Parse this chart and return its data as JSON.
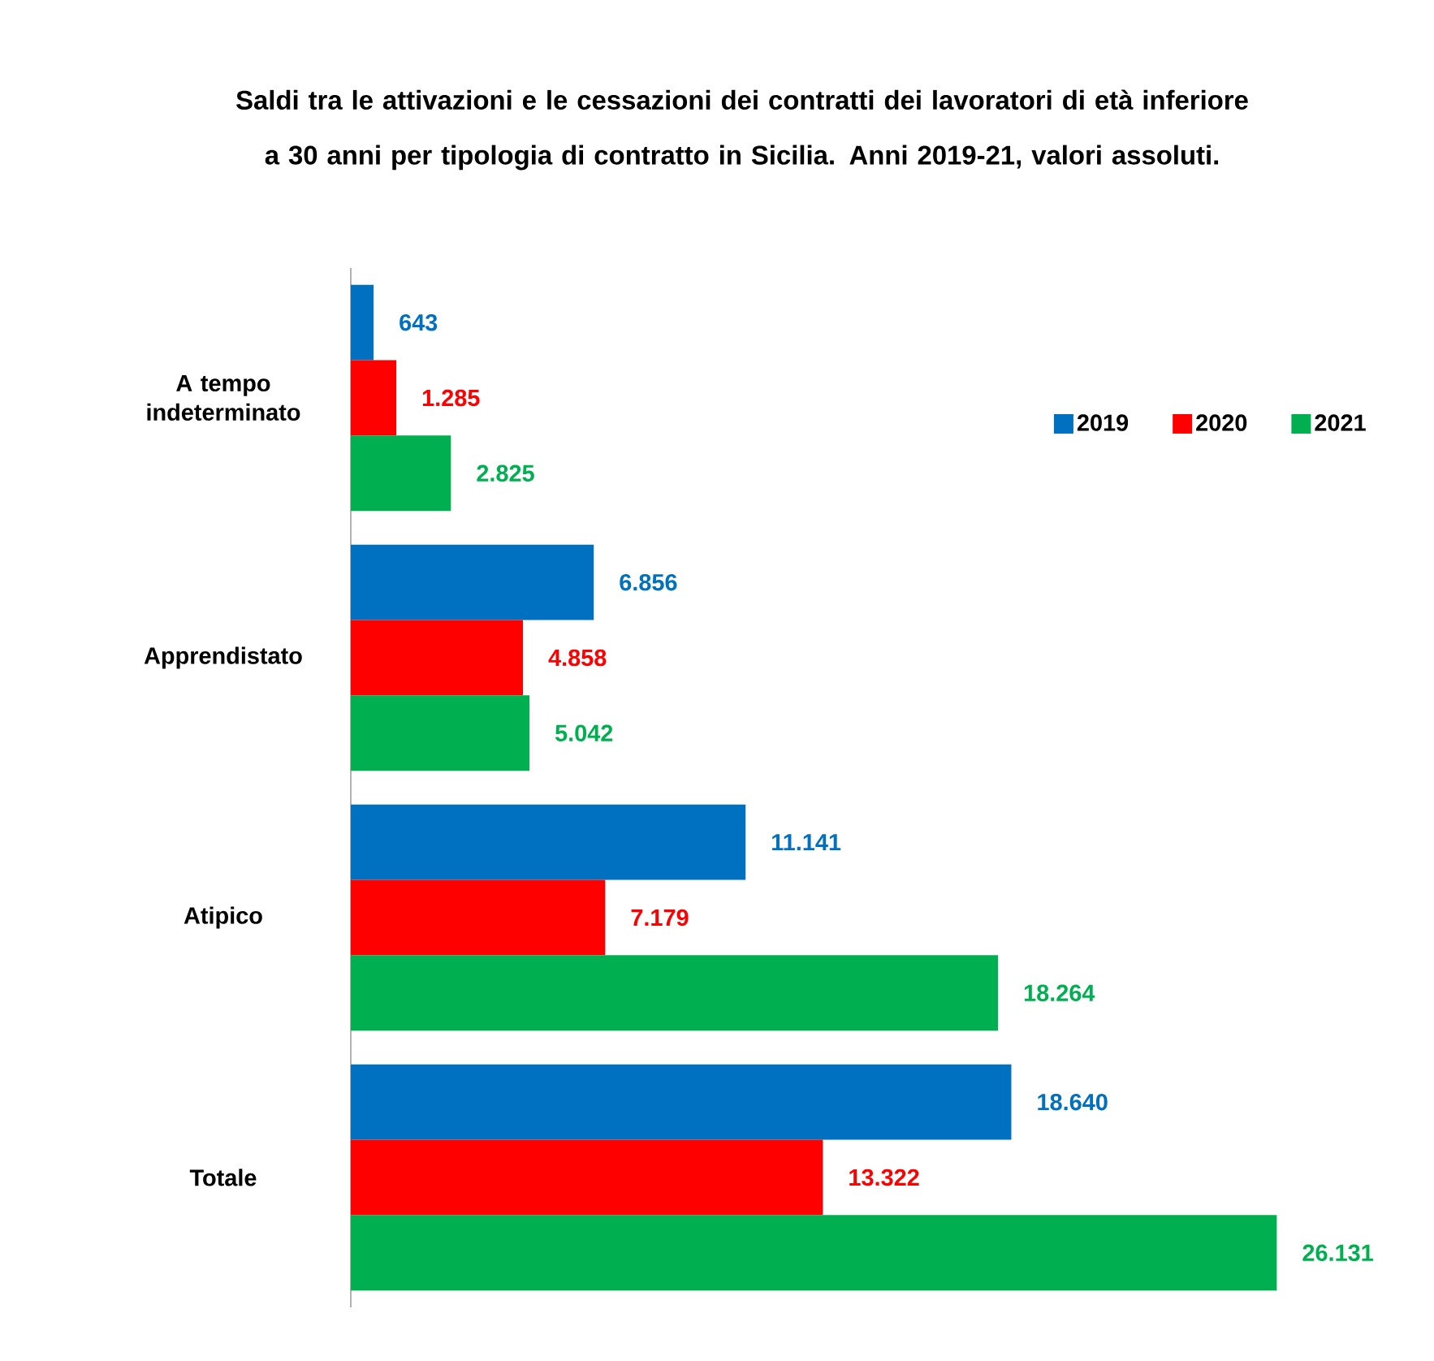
{
  "chart_data": {
    "type": "bar",
    "orientation": "horizontal",
    "title": "Saldi tra le attivazioni e le cessazioni dei contratti dei lavoratori di età inferiore a 30 anni per tipologia di contratto in Sicilia. Anni 2019-21, valori assoluti.",
    "categories": [
      "A tempo indeterminato",
      "Apprendistato",
      "Atipico",
      "Totale"
    ],
    "series": [
      {
        "name": "2019",
        "color": "#0070c0",
        "values": [
          643,
          6856,
          11141,
          18640
        ],
        "value_labels": [
          "643",
          "6.856",
          "11.141",
          "18.640"
        ]
      },
      {
        "name": "2020",
        "color": "#ff0000",
        "values": [
          1285,
          4858,
          7179,
          13322
        ],
        "value_labels": [
          "1.285",
          "4.858",
          "7.179",
          "13.322"
        ]
      },
      {
        "name": "2021",
        "color": "#00b050",
        "values": [
          2825,
          5042,
          18264,
          26131
        ],
        "value_labels": [
          "2.825",
          "5.042",
          "18.264",
          "26.131"
        ]
      }
    ],
    "legend": "top right"
  }
}
